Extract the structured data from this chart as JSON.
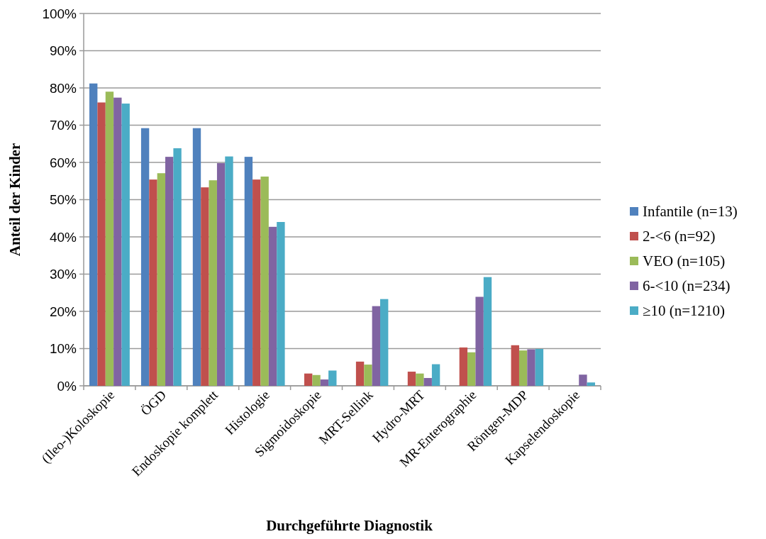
{
  "chart_data": {
    "type": "bar",
    "xlabel": "Durchgeführte Diagnostik",
    "ylabel": "Anteil der Kinder",
    "categories": [
      "(Ileo-)Koloskopie",
      "ÖGD",
      "Endoskopie komplett",
      "Histologie",
      "Sigmoidoskopie",
      "MRT-Sellink",
      "Hydro-MRT",
      "MR-Enterographie",
      "Röntgen-MDP",
      "Kapselendoskopie"
    ],
    "series": [
      {
        "name": "Infantile (n=13)",
        "color": "#4f81bd",
        "values": [
          81.2,
          69.2,
          69.2,
          61.5,
          0,
          0,
          0,
          0,
          0,
          0
        ]
      },
      {
        "name": "2-<6 (n=92)",
        "color": "#c0504d",
        "values": [
          76.1,
          55.4,
          53.3,
          55.4,
          3.3,
          6.5,
          3.8,
          10.3,
          10.9,
          0
        ]
      },
      {
        "name": "VEO (n=105)",
        "color": "#9bbb59",
        "values": [
          79.0,
          57.1,
          55.2,
          56.2,
          2.9,
          5.7,
          3.3,
          9.0,
          9.5,
          0
        ]
      },
      {
        "name": "6-<10 (n=234)",
        "color": "#8064a2",
        "values": [
          77.4,
          61.5,
          59.8,
          42.7,
          1.7,
          21.4,
          2.1,
          23.9,
          9.8,
          3.0
        ]
      },
      {
        "name": "≥10 (n=1210)",
        "color": "#4bacc6",
        "values": [
          75.8,
          63.8,
          61.6,
          44.0,
          4.1,
          23.3,
          5.8,
          29.2,
          9.9,
          0.9
        ]
      }
    ],
    "ylim": [
      0,
      100
    ],
    "yticks": [
      {
        "value": 0,
        "label": "0%"
      },
      {
        "value": 10,
        "label": "10%"
      },
      {
        "value": 20,
        "label": "20%"
      },
      {
        "value": 30,
        "label": "30%"
      },
      {
        "value": 40,
        "label": "40%"
      },
      {
        "value": 50,
        "label": "50%"
      },
      {
        "value": 60,
        "label": "60%"
      },
      {
        "value": 70,
        "label": "70%"
      },
      {
        "value": 80,
        "label": "80%"
      },
      {
        "value": 90,
        "label": "90%"
      },
      {
        "value": 100,
        "label": "100%"
      }
    ],
    "grid": "y",
    "legend": "right"
  }
}
